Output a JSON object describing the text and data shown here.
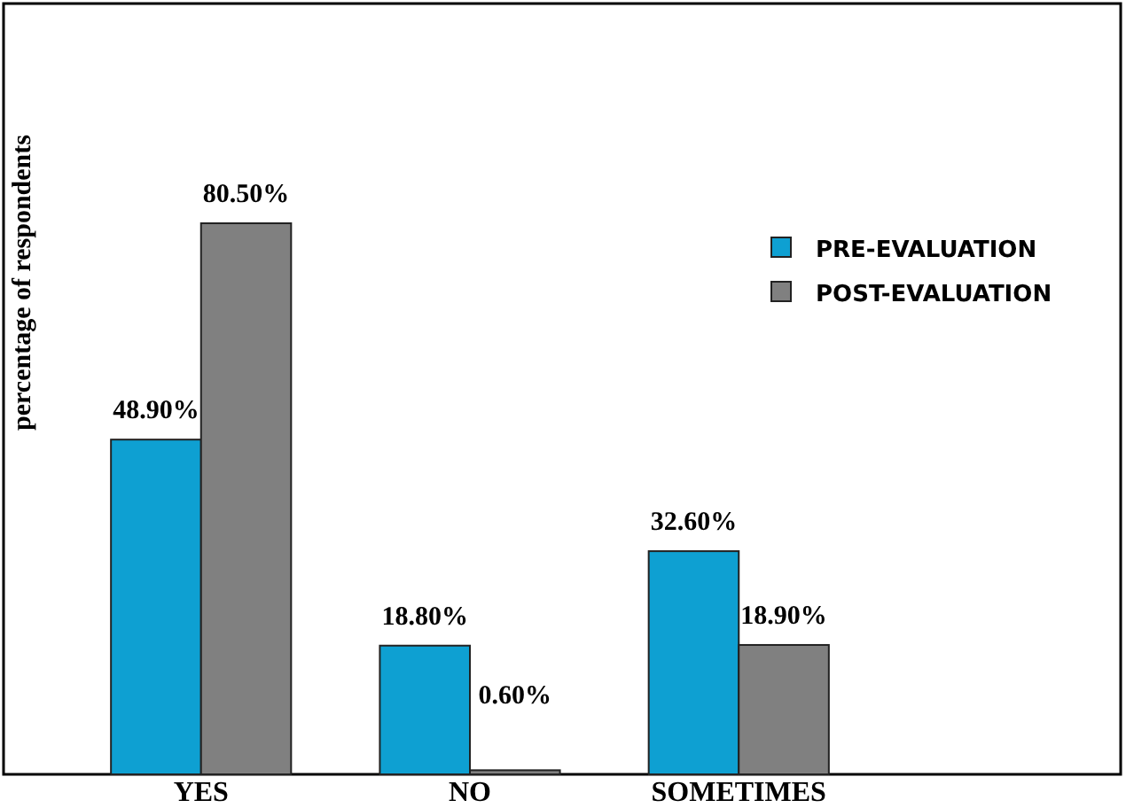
{
  "chart_data": {
    "type": "bar",
    "ylabel": "percentage of respondents",
    "categories": [
      "YES",
      "NO",
      "SOMETIMES"
    ],
    "series": [
      {
        "name": "PRE-EVALUATION",
        "color": "#0ea0d2",
        "values": [
          48.9,
          18.8,
          32.6
        ],
        "value_labels": [
          "48.90%",
          "18.80%",
          "32.60%"
        ]
      },
      {
        "name": "POST-EVALUATION",
        "color": "#808080",
        "values": [
          80.5,
          0.6,
          18.9
        ],
        "value_labels": [
          "80.50%",
          "0.60%",
          "18.90%"
        ]
      }
    ],
    "legend": "top right"
  }
}
